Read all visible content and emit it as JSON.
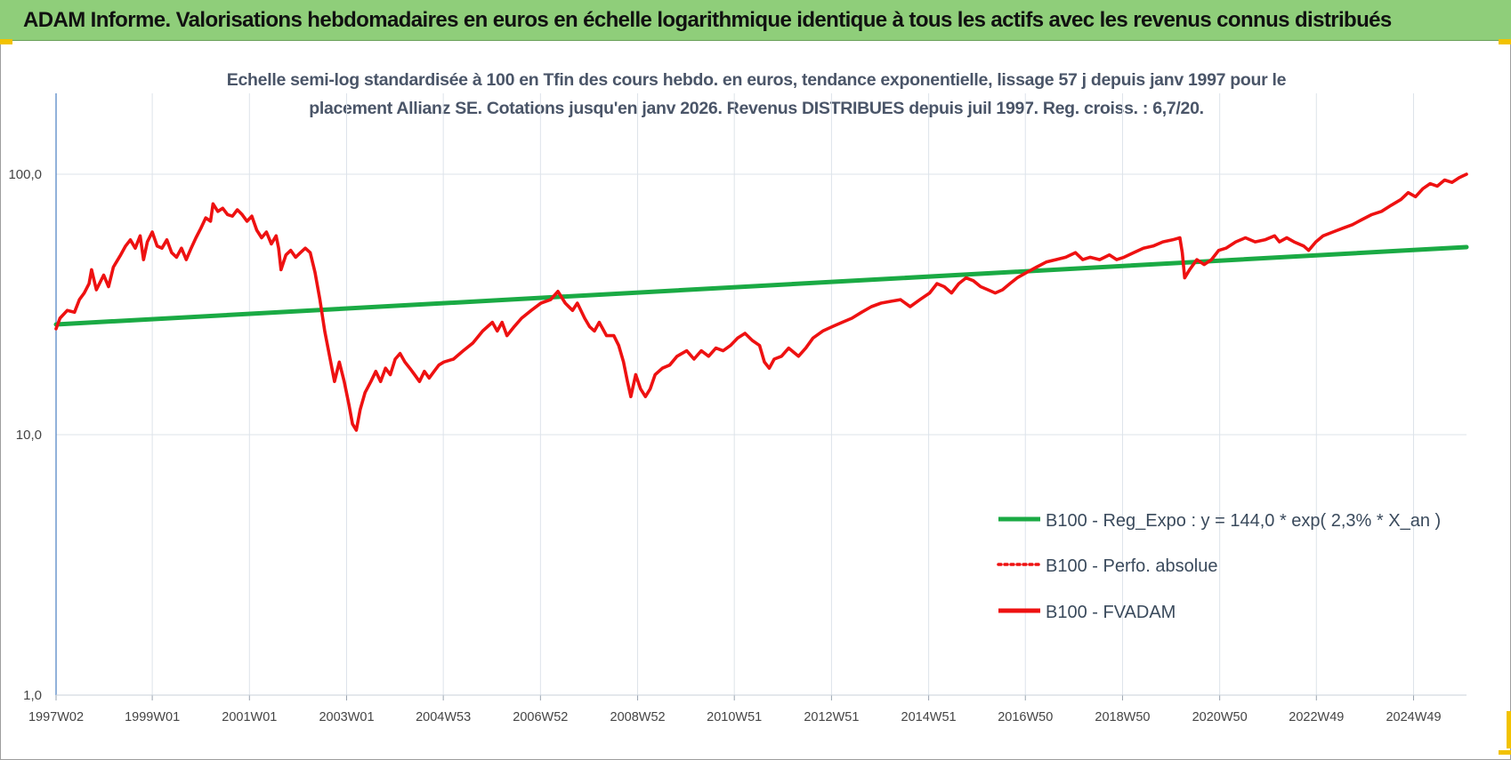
{
  "header": {
    "title": "ADAM Informe. Valorisations hebdomadaires en euros en échelle logarithmique identique à tous les actifs avec les revenus connus distribués"
  },
  "subtitle": {
    "line1": "Echelle semi-log standardisée à 100 en Tfin des cours hebdo. en euros, tendance exponentielle, lissage 57 j depuis janv 1997 pour le",
    "line2": "placement Allianz SE. Cotations jusqu'en janv 2026. Revenus DISTRIBUES depuis juil 1997. Reg. croiss. : 6,7/20."
  },
  "colors": {
    "header_bg": "#8fce7a",
    "trend": "#1aaa44",
    "perf": "#ee1111",
    "accent_corner": "#f2c200",
    "grid": "#dde3ea",
    "axis_text": "#444444"
  },
  "chart_data": {
    "type": "line",
    "y_scale": "log",
    "ylim": [
      1,
      200
    ],
    "y_ticks": [
      {
        "value": 100,
        "label": "100,0"
      },
      {
        "value": 10,
        "label": "10,0"
      },
      {
        "value": 1,
        "label": "1,0"
      }
    ],
    "x_range": [
      1997.02,
      2026.05
    ],
    "x_ticks": [
      {
        "x": 1997.02,
        "label": "1997W02"
      },
      {
        "x": 1999.0,
        "label": "1999W01"
      },
      {
        "x": 2001.0,
        "label": "2001W01"
      },
      {
        "x": 2003.0,
        "label": "2003W01"
      },
      {
        "x": 2004.99,
        "label": "2004W53"
      },
      {
        "x": 2006.99,
        "label": "2006W52"
      },
      {
        "x": 2008.99,
        "label": "2008W52"
      },
      {
        "x": 2010.98,
        "label": "2010W51"
      },
      {
        "x": 2012.98,
        "label": "2012W51"
      },
      {
        "x": 2014.98,
        "label": "2014W51"
      },
      {
        "x": 2016.97,
        "label": "2016W50"
      },
      {
        "x": 2018.97,
        "label": "2018W50"
      },
      {
        "x": 2020.97,
        "label": "2020W50"
      },
      {
        "x": 2022.96,
        "label": "2022W49"
      },
      {
        "x": 2024.96,
        "label": "2024W49"
      }
    ],
    "legend_position": "bottom-right",
    "series": [
      {
        "name": "B100 - Reg_Expo : y = 144,0 * exp( 2,3% *  X_an )",
        "style": "solid-thick",
        "color": "#1aaa44",
        "points": [
          [
            1997.02,
            26.5
          ],
          [
            2026.05,
            52.5
          ]
        ]
      },
      {
        "name": "B100 - Perfo. absolue",
        "style": "dotted",
        "color": "#ee1111",
        "points": []
      },
      {
        "name": "B100 - FVADAM",
        "style": "solid-thick",
        "color": "#ee1111",
        "points": [
          [
            1997.02,
            25.5
          ],
          [
            1997.1,
            28
          ],
          [
            1997.25,
            30
          ],
          [
            1997.4,
            29.5
          ],
          [
            1997.5,
            33
          ],
          [
            1997.6,
            35
          ],
          [
            1997.7,
            38
          ],
          [
            1997.75,
            43
          ],
          [
            1997.85,
            36
          ],
          [
            1998.0,
            41
          ],
          [
            1998.1,
            37
          ],
          [
            1998.2,
            44
          ],
          [
            1998.35,
            49
          ],
          [
            1998.45,
            53
          ],
          [
            1998.55,
            56
          ],
          [
            1998.65,
            52
          ],
          [
            1998.75,
            58
          ],
          [
            1998.82,
            47
          ],
          [
            1998.9,
            55
          ],
          [
            1999.0,
            60
          ],
          [
            1999.1,
            53
          ],
          [
            1999.2,
            52
          ],
          [
            1999.3,
            56
          ],
          [
            1999.4,
            50
          ],
          [
            1999.5,
            48
          ],
          [
            1999.6,
            52
          ],
          [
            1999.7,
            47
          ],
          [
            1999.8,
            52
          ],
          [
            1999.9,
            57
          ],
          [
            2000.0,
            62
          ],
          [
            2000.1,
            68
          ],
          [
            2000.2,
            66
          ],
          [
            2000.25,
            77
          ],
          [
            2000.35,
            72
          ],
          [
            2000.45,
            74
          ],
          [
            2000.55,
            70
          ],
          [
            2000.65,
            69
          ],
          [
            2000.75,
            73
          ],
          [
            2000.85,
            70
          ],
          [
            2000.95,
            66
          ],
          [
            2001.05,
            69
          ],
          [
            2001.15,
            61
          ],
          [
            2001.25,
            57
          ],
          [
            2001.35,
            60
          ],
          [
            2001.45,
            54
          ],
          [
            2001.55,
            58
          ],
          [
            2001.6,
            52
          ],
          [
            2001.65,
            43
          ],
          [
            2001.75,
            49
          ],
          [
            2001.85,
            51
          ],
          [
            2001.95,
            48
          ],
          [
            2002.05,
            50
          ],
          [
            2002.15,
            52
          ],
          [
            2002.25,
            50
          ],
          [
            2002.35,
            42
          ],
          [
            2002.45,
            33
          ],
          [
            2002.55,
            25
          ],
          [
            2002.65,
            20
          ],
          [
            2002.75,
            16
          ],
          [
            2002.85,
            19
          ],
          [
            2002.95,
            16
          ],
          [
            2003.05,
            13
          ],
          [
            2003.12,
            11
          ],
          [
            2003.2,
            10.4
          ],
          [
            2003.28,
            12.5
          ],
          [
            2003.38,
            14.5
          ],
          [
            2003.5,
            16
          ],
          [
            2003.6,
            17.5
          ],
          [
            2003.7,
            16
          ],
          [
            2003.8,
            18
          ],
          [
            2003.9,
            17
          ],
          [
            2004.0,
            19.5
          ],
          [
            2004.1,
            20.5
          ],
          [
            2004.2,
            19
          ],
          [
            2004.3,
            18
          ],
          [
            2004.4,
            17
          ],
          [
            2004.5,
            16
          ],
          [
            2004.6,
            17.5
          ],
          [
            2004.7,
            16.5
          ],
          [
            2004.8,
            17.5
          ],
          [
            2004.9,
            18.5
          ],
          [
            2005.0,
            19
          ],
          [
            2005.2,
            19.5
          ],
          [
            2005.4,
            21
          ],
          [
            2005.6,
            22.5
          ],
          [
            2005.8,
            25
          ],
          [
            2006.0,
            27
          ],
          [
            2006.1,
            25
          ],
          [
            2006.2,
            27
          ],
          [
            2006.3,
            24
          ],
          [
            2006.45,
            26
          ],
          [
            2006.6,
            28
          ],
          [
            2006.8,
            30
          ],
          [
            2007.0,
            32
          ],
          [
            2007.2,
            33
          ],
          [
            2007.35,
            35.5
          ],
          [
            2007.5,
            32
          ],
          [
            2007.65,
            30
          ],
          [
            2007.75,
            32
          ],
          [
            2007.9,
            28
          ],
          [
            2008.0,
            26
          ],
          [
            2008.1,
            25
          ],
          [
            2008.2,
            27
          ],
          [
            2008.35,
            24
          ],
          [
            2008.5,
            24
          ],
          [
            2008.6,
            22
          ],
          [
            2008.7,
            19
          ],
          [
            2008.78,
            16
          ],
          [
            2008.85,
            14
          ],
          [
            2008.95,
            17
          ],
          [
            2009.05,
            15
          ],
          [
            2009.15,
            14
          ],
          [
            2009.25,
            15
          ],
          [
            2009.35,
            17
          ],
          [
            2009.5,
            18
          ],
          [
            2009.65,
            18.5
          ],
          [
            2009.8,
            20
          ],
          [
            2010.0,
            21
          ],
          [
            2010.15,
            19.5
          ],
          [
            2010.3,
            21
          ],
          [
            2010.45,
            20
          ],
          [
            2010.6,
            21.5
          ],
          [
            2010.75,
            21
          ],
          [
            2010.9,
            22
          ],
          [
            2011.05,
            23.5
          ],
          [
            2011.2,
            24.5
          ],
          [
            2011.35,
            23
          ],
          [
            2011.5,
            22
          ],
          [
            2011.6,
            19
          ],
          [
            2011.7,
            18
          ],
          [
            2011.8,
            19.5
          ],
          [
            2011.95,
            20
          ],
          [
            2012.1,
            21.5
          ],
          [
            2012.3,
            20
          ],
          [
            2012.45,
            21.5
          ],
          [
            2012.6,
            23.5
          ],
          [
            2012.8,
            25
          ],
          [
            2013.0,
            26
          ],
          [
            2013.2,
            27
          ],
          [
            2013.4,
            28
          ],
          [
            2013.6,
            29.5
          ],
          [
            2013.8,
            31
          ],
          [
            2014.0,
            32
          ],
          [
            2014.2,
            32.5
          ],
          [
            2014.4,
            33
          ],
          [
            2014.6,
            31
          ],
          [
            2014.8,
            33
          ],
          [
            2015.0,
            35
          ],
          [
            2015.15,
            38
          ],
          [
            2015.3,
            37
          ],
          [
            2015.45,
            35
          ],
          [
            2015.6,
            38
          ],
          [
            2015.75,
            40
          ],
          [
            2015.9,
            39
          ],
          [
            2016.05,
            37
          ],
          [
            2016.2,
            36
          ],
          [
            2016.35,
            35
          ],
          [
            2016.5,
            36
          ],
          [
            2016.65,
            38
          ],
          [
            2016.8,
            40
          ],
          [
            2017.0,
            42
          ],
          [
            2017.2,
            44
          ],
          [
            2017.4,
            46
          ],
          [
            2017.6,
            47
          ],
          [
            2017.8,
            48
          ],
          [
            2018.0,
            50
          ],
          [
            2018.15,
            47
          ],
          [
            2018.3,
            48
          ],
          [
            2018.5,
            47
          ],
          [
            2018.7,
            49
          ],
          [
            2018.85,
            47
          ],
          [
            2019.0,
            48
          ],
          [
            2019.2,
            50
          ],
          [
            2019.4,
            52
          ],
          [
            2019.6,
            53
          ],
          [
            2019.8,
            55
          ],
          [
            2020.0,
            56
          ],
          [
            2020.15,
            57
          ],
          [
            2020.2,
            50
          ],
          [
            2020.25,
            40
          ],
          [
            2020.35,
            43
          ],
          [
            2020.5,
            47
          ],
          [
            2020.65,
            45
          ],
          [
            2020.8,
            47
          ],
          [
            2020.95,
            51
          ],
          [
            2021.1,
            52
          ],
          [
            2021.3,
            55
          ],
          [
            2021.5,
            57
          ],
          [
            2021.7,
            55
          ],
          [
            2021.9,
            56
          ],
          [
            2022.1,
            58
          ],
          [
            2022.2,
            55
          ],
          [
            2022.35,
            57
          ],
          [
            2022.5,
            55
          ],
          [
            2022.7,
            53
          ],
          [
            2022.8,
            51
          ],
          [
            2022.95,
            55
          ],
          [
            2023.1,
            58
          ],
          [
            2023.3,
            60
          ],
          [
            2023.5,
            62
          ],
          [
            2023.7,
            64
          ],
          [
            2023.9,
            67
          ],
          [
            2024.1,
            70
          ],
          [
            2024.3,
            72
          ],
          [
            2024.5,
            76
          ],
          [
            2024.7,
            80
          ],
          [
            2024.85,
            85
          ],
          [
            2025.0,
            82
          ],
          [
            2025.15,
            88
          ],
          [
            2025.3,
            92
          ],
          [
            2025.45,
            90
          ],
          [
            2025.6,
            95
          ],
          [
            2025.75,
            93
          ],
          [
            2025.9,
            97
          ],
          [
            2026.05,
            100
          ]
        ]
      }
    ]
  }
}
